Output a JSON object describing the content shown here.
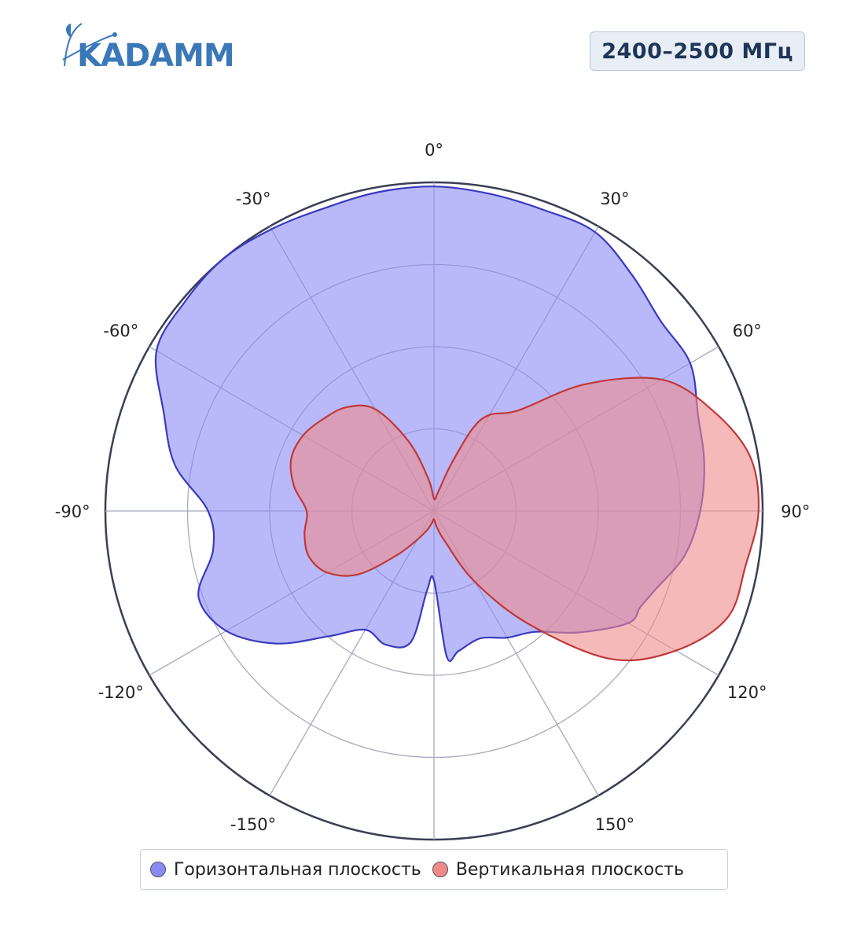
{
  "header": {
    "logo_text": "KADAMM",
    "frequency_label": "2400–2500 МГц"
  },
  "colors": {
    "horizontal_fill": "#8a8af5",
    "horizontal_line": "#3a3ac0",
    "vertical_fill": "#f08a8a",
    "vertical_line": "#c03838",
    "logo": "#3a78b8",
    "badge_text": "#1e3557"
  },
  "chart_data": {
    "type": "polar-area",
    "angle_unit": "degrees",
    "angle_range": [
      -180,
      180
    ],
    "radial_range": [
      0,
      4
    ],
    "radial_grid": [
      1,
      2,
      3,
      4
    ],
    "angular_tick_labels": [
      {
        "angle": 0,
        "label": "0°"
      },
      {
        "angle": 30,
        "label": "30°"
      },
      {
        "angle": 60,
        "label": "60°"
      },
      {
        "angle": 90,
        "label": "90°"
      },
      {
        "angle": 120,
        "label": "120°"
      },
      {
        "angle": 150,
        "label": "150°"
      },
      {
        "angle": -30,
        "label": "-30°"
      },
      {
        "angle": -60,
        "label": "-60°"
      },
      {
        "angle": -90,
        "label": "-90°"
      },
      {
        "angle": -120,
        "label": "-120°"
      },
      {
        "angle": -150,
        "label": "-150°"
      }
    ],
    "series": [
      {
        "name": "Горизонтальная плоскость",
        "angles": [
          0,
          10,
          20,
          30,
          40,
          50,
          60,
          70,
          80,
          90,
          100,
          110,
          115,
          120,
          130,
          140,
          150,
          160,
          170,
          175,
          180,
          -175,
          -170,
          -160,
          -150,
          -140,
          -130,
          -120,
          -110,
          -100,
          -90,
          -80,
          -70,
          -60,
          -50,
          -40,
          -30,
          -20,
          -10
        ],
        "values": [
          3.95,
          3.92,
          3.9,
          3.92,
          3.75,
          3.6,
          3.6,
          3.42,
          3.34,
          3.24,
          3.1,
          2.85,
          2.77,
          2.73,
          2.3,
          1.92,
          1.78,
          1.65,
          1.73,
          1.78,
          0.85,
          0.97,
          1.62,
          1.73,
          1.67,
          1.99,
          2.51,
          2.92,
          3.05,
          2.73,
          2.75,
          3.2,
          3.5,
          3.9,
          3.96,
          4.0,
          3.96,
          3.92,
          3.94
        ]
      },
      {
        "name": "Вертикальная плоскость",
        "angles": [
          0,
          10,
          15,
          20,
          25,
          30,
          40,
          50,
          60,
          70,
          80,
          90,
          100,
          110,
          120,
          130,
          140,
          150,
          160,
          170,
          180,
          -170,
          -160,
          -150,
          -140,
          -130,
          -120,
          -110,
          -100,
          -90,
          -80,
          -70,
          -60,
          -50,
          -40,
          -30,
          -20,
          -10
        ],
        "values": [
          0.15,
          0.2,
          0.3,
          0.6,
          1.1,
          1.35,
          1.6,
          2.4,
          3.2,
          3.6,
          3.9,
          3.95,
          3.85,
          3.8,
          3.4,
          2.8,
          1.8,
          1.0,
          0.4,
          0.2,
          0.1,
          0.15,
          0.25,
          0.4,
          0.7,
          1.2,
          1.5,
          1.62,
          1.6,
          1.55,
          1.73,
          1.85,
          1.84,
          1.75,
          1.65,
          1.43,
          0.9,
          0.4
        ]
      }
    ],
    "legend_position": "bottom"
  },
  "legend": {
    "horizontal_label": "Горизонтальная плоскость",
    "vertical_label": "Вертикальная плоскость"
  }
}
